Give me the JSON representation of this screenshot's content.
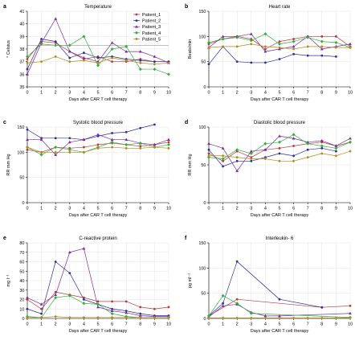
{
  "colors": {
    "Patient_1": "#b53a3a",
    "Patient_2": "#2e2e9a",
    "Patient_3": "#7a2a9a",
    "Patient_4": "#2fae3a",
    "Patient_5": "#b08a1a"
  },
  "legend": {
    "position": "top-right",
    "entries": [
      "Patient_1",
      "Patient_2",
      "Patient_3",
      "Patient_4",
      "Patient_5"
    ]
  },
  "chart_data": [
    {
      "panel": "a",
      "type": "line",
      "title": "Temperature",
      "xlabel": "Days after CAR T cell therapy",
      "ylabel": "° Celsius",
      "xlim": [
        0,
        10
      ],
      "ylim": [
        35,
        41
      ],
      "xticks": [
        0,
        1,
        2,
        3,
        4,
        5,
        6,
        7,
        8,
        9,
        10
      ],
      "yticks": [
        35,
        36,
        37,
        38,
        39,
        40,
        41
      ],
      "grid": true,
      "legend": true,
      "reference_line": 38.3,
      "series": [
        {
          "name": "Patient_1",
          "x": [
            0,
            1,
            2,
            3,
            4,
            5,
            6,
            7,
            8,
            9,
            10
          ],
          "y": [
            37.2,
            38.6,
            38.5,
            37.8,
            37.2,
            37.4,
            37.0,
            37.0,
            37.2,
            37.0,
            37.0
          ]
        },
        {
          "name": "Patient_2",
          "x": [
            0,
            1,
            2,
            3,
            4,
            5,
            6,
            7,
            8,
            9,
            10
          ],
          "y": [
            36.4,
            38.8,
            38.6,
            37.3,
            37.7,
            37.3,
            37.4,
            37.2,
            37.1,
            37.0,
            37.0
          ]
        },
        {
          "name": "Patient_3",
          "x": [
            0,
            1,
            2,
            3,
            4,
            5,
            6,
            7,
            8,
            9,
            10
          ],
          "y": [
            36.0,
            38.5,
            40.4,
            37.8,
            37.3,
            37.0,
            38.5,
            37.8,
            37.8,
            37.4,
            36.9
          ]
        },
        {
          "name": "Patient_4",
          "x": [
            0,
            1,
            2,
            3,
            4,
            5,
            6,
            7,
            8,
            9,
            10
          ],
          "y": [
            37.4,
            38.4,
            38.3,
            38.3,
            39.0,
            36.7,
            38.0,
            38.2,
            36.4,
            36.4,
            36.0
          ]
        },
        {
          "name": "Patient_5",
          "x": [
            0,
            1,
            2,
            3,
            4,
            5,
            6,
            7,
            8,
            9,
            10
          ],
          "y": [
            36.9,
            37.0,
            37.4,
            37.0,
            37.1,
            36.9,
            37.3,
            37.1,
            36.9,
            36.8,
            36.9
          ]
        }
      ]
    },
    {
      "panel": "b",
      "type": "line",
      "title": "Heart rate",
      "xlabel": "Days after CAR T cell therapy",
      "ylabel": "Beats/min",
      "xlim": [
        0,
        10
      ],
      "ylim": [
        0,
        150
      ],
      "xticks": [
        0,
        1,
        2,
        3,
        4,
        5,
        6,
        7,
        8,
        9,
        10
      ],
      "yticks": [
        0,
        50,
        100,
        150
      ],
      "grid": true,
      "legend": false,
      "series": [
        {
          "name": "Patient_1",
          "x": [
            0,
            1,
            2,
            3,
            4,
            5,
            6,
            7,
            8,
            9,
            10
          ],
          "y": [
            85,
            95,
            100,
            95,
            75,
            90,
            95,
            100,
            100,
            100,
            80
          ]
        },
        {
          "name": "Patient_2",
          "x": [
            0,
            1,
            2,
            3,
            4,
            5,
            6,
            7,
            8,
            9
          ],
          "y": [
            45,
            80,
            50,
            48,
            48,
            55,
            65,
            62,
            62,
            60
          ]
        },
        {
          "name": "Patient_3",
          "x": [
            0,
            1,
            2,
            3,
            4,
            5,
            6,
            7,
            8,
            9,
            10
          ],
          "y": [
            78,
            100,
            100,
            105,
            70,
            75,
            80,
            100,
            75,
            80,
            85
          ]
        },
        {
          "name": "Patient_4",
          "x": [
            0,
            1,
            2,
            3,
            4,
            5,
            6,
            7,
            8,
            9,
            10
          ],
          "y": [
            88,
            95,
            98,
            92,
            105,
            85,
            90,
            98,
            90,
            88,
            78
          ]
        },
        {
          "name": "Patient_5",
          "x": [
            0,
            1,
            2,
            3,
            4,
            5,
            6,
            7,
            8,
            9,
            10
          ],
          "y": [
            78,
            80,
            80,
            85,
            80,
            78,
            75,
            80,
            80,
            78,
            78
          ]
        }
      ]
    },
    {
      "panel": "c",
      "type": "line",
      "title": "Systolic blood pressure",
      "xlabel": "Days after CAR T cell therapy",
      "ylabel": "RR mm Hg",
      "xlim": [
        0,
        10
      ],
      "ylim": [
        0,
        150
      ],
      "xticks": [
        0,
        1,
        2,
        3,
        4,
        5,
        6,
        7,
        8,
        9,
        10
      ],
      "yticks": [
        0,
        50,
        100,
        150
      ],
      "grid": true,
      "legend": false,
      "series": [
        {
          "name": "Patient_1",
          "x": [
            0,
            1,
            2,
            3,
            4,
            5,
            6,
            7,
            8,
            9,
            10
          ],
          "y": [
            105,
            100,
            110,
            108,
            110,
            115,
            118,
            115,
            112,
            115,
            120
          ]
        },
        {
          "name": "Patient_2",
          "x": [
            0,
            1,
            2,
            3,
            4,
            5,
            6,
            7,
            8,
            9
          ],
          "y": [
            145,
            128,
            128,
            128,
            125,
            132,
            138,
            140,
            148,
            155
          ]
        },
        {
          "name": "Patient_3",
          "x": [
            0,
            1,
            2,
            3,
            4,
            5,
            6,
            7,
            8,
            9,
            10
          ],
          "y": [
            125,
            125,
            95,
            120,
            125,
            135,
            125,
            125,
            118,
            115,
            125
          ]
        },
        {
          "name": "Patient_4",
          "x": [
            0,
            1,
            2,
            3,
            4,
            5,
            6,
            7,
            8,
            9,
            10
          ],
          "y": [
            110,
            95,
            110,
            105,
            100,
            110,
            120,
            115,
            118,
            110,
            115
          ]
        },
        {
          "name": "Patient_5",
          "x": [
            0,
            1,
            2,
            3,
            4,
            5,
            6,
            7,
            8,
            9,
            10
          ],
          "y": [
            110,
            100,
            100,
            100,
            100,
            108,
            110,
            108,
            108,
            110,
            108
          ]
        }
      ]
    },
    {
      "panel": "d",
      "type": "line",
      "title": "Diastolic blood pressure",
      "xlabel": "Days after CAR T cell therapy",
      "ylabel": "RR mm Hg",
      "xlim": [
        0,
        10
      ],
      "ylim": [
        0,
        100
      ],
      "xticks": [
        0,
        1,
        2,
        3,
        4,
        5,
        6,
        7,
        8,
        9,
        10
      ],
      "yticks": [
        0,
        50,
        100
      ],
      "grid": true,
      "legend": false,
      "series": [
        {
          "name": "Patient_1",
          "x": [
            0,
            1,
            2,
            3,
            4,
            5,
            6,
            7,
            8,
            9,
            10
          ],
          "y": [
            65,
            55,
            68,
            60,
            70,
            72,
            75,
            78,
            80,
            75,
            80
          ]
        },
        {
          "name": "Patient_2",
          "x": [
            0,
            1,
            2,
            3,
            4,
            5,
            6,
            7,
            8,
            9
          ],
          "y": [
            70,
            48,
            55,
            55,
            60,
            65,
            62,
            70,
            72,
            68
          ]
        },
        {
          "name": "Patient_3",
          "x": [
            0,
            1,
            2,
            3,
            4,
            5,
            6,
            7,
            8,
            9,
            10
          ],
          "y": [
            78,
            72,
            42,
            68,
            70,
            88,
            85,
            80,
            82,
            75,
            85
          ]
        },
        {
          "name": "Patient_4",
          "x": [
            0,
            1,
            2,
            3,
            4,
            5,
            6,
            7,
            8,
            9,
            10
          ],
          "y": [
            60,
            58,
            70,
            65,
            78,
            80,
            90,
            78,
            75,
            72,
            80
          ]
        },
        {
          "name": "Patient_5",
          "x": [
            0,
            1,
            2,
            3,
            4,
            5,
            6,
            7,
            8,
            9,
            10
          ],
          "y": [
            62,
            62,
            60,
            58,
            58,
            55,
            55,
            60,
            65,
            62,
            68
          ]
        }
      ]
    },
    {
      "panel": "e",
      "type": "line",
      "title": "C-reactive protein",
      "xlabel": "Days after CAR T cell therapy",
      "ylabel": "mg l⁻¹",
      "xlim": [
        0,
        10
      ],
      "ylim": [
        0,
        80
      ],
      "xticks": [
        0,
        1,
        2,
        3,
        4,
        5,
        6,
        7,
        8,
        9,
        10
      ],
      "yticks": [
        0,
        10,
        20,
        30,
        40,
        50,
        60,
        70,
        80
      ],
      "grid": true,
      "legend": false,
      "series": [
        {
          "name": "Patient_1",
          "x": [
            0,
            1,
            2,
            3,
            4,
            5,
            6,
            7,
            8,
            9,
            10
          ],
          "y": [
            20,
            10,
            28,
            25,
            22,
            18,
            18,
            18,
            12,
            10,
            12
          ]
        },
        {
          "name": "Patient_2",
          "x": [
            0,
            1,
            2,
            3,
            4,
            5,
            6,
            7,
            8,
            9,
            10
          ],
          "y": [
            10,
            5,
            60,
            48,
            20,
            15,
            10,
            8,
            5,
            3,
            3
          ]
        },
        {
          "name": "Patient_3",
          "x": [
            0,
            1,
            2,
            3,
            4,
            5,
            6,
            7,
            8,
            9,
            10
          ],
          "y": [
            22,
            15,
            25,
            70,
            74,
            12,
            8,
            6,
            3,
            2,
            2
          ]
        },
        {
          "name": "Patient_4",
          "x": [
            0,
            1,
            2,
            3,
            4,
            5,
            6,
            7,
            8,
            9,
            10
          ],
          "y": [
            2,
            1,
            22,
            24,
            16,
            15,
            5,
            2,
            1,
            1,
            1
          ]
        },
        {
          "name": "Patient_5",
          "x": [
            0,
            1,
            2,
            3,
            4,
            5,
            6,
            7,
            8,
            9,
            10
          ],
          "y": [
            1,
            1,
            2,
            1,
            1,
            1,
            1,
            1,
            1,
            1,
            1
          ]
        }
      ]
    },
    {
      "panel": "f",
      "type": "line",
      "title": "Interleukin- 6",
      "xlabel": "Days after CAR T cell therapy",
      "ylabel": "pg ml⁻¹",
      "xlim": [
        0,
        10
      ],
      "ylim": [
        0,
        150
      ],
      "xticks": [
        0,
        1,
        2,
        3,
        4,
        5,
        6,
        7,
        8,
        9,
        10
      ],
      "yticks": [
        0,
        50,
        100,
        150
      ],
      "grid": true,
      "legend": false,
      "series": [
        {
          "name": "Patient_1",
          "x": [
            0,
            2,
            8,
            10
          ],
          "y": [
            5,
            38,
            22,
            25
          ]
        },
        {
          "name": "Patient_2",
          "x": [
            0,
            1,
            2,
            5,
            8
          ],
          "y": [
            5,
            30,
            113,
            38,
            22
          ]
        },
        {
          "name": "Patient_3",
          "x": [
            0,
            1,
            2,
            3,
            4,
            5,
            10
          ],
          "y": [
            3,
            25,
            28,
            12,
            5,
            5,
            10
          ]
        },
        {
          "name": "Patient_4",
          "x": [
            0,
            1,
            2,
            3,
            10
          ],
          "y": [
            5,
            45,
            30,
            10,
            2
          ]
        },
        {
          "name": "Patient_5",
          "x": [
            0,
            1,
            2,
            3,
            4,
            5,
            6,
            7,
            8,
            9,
            10
          ],
          "y": [
            1,
            1,
            1,
            1,
            1,
            1,
            1,
            1,
            1,
            1,
            1
          ]
        }
      ]
    }
  ]
}
